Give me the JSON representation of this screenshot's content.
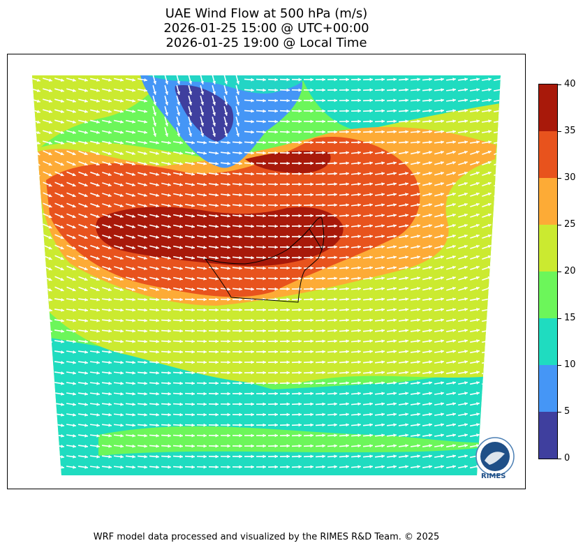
{
  "title": {
    "line1": "UAE Wind Flow at 500 hPa (m/s)",
    "line2": "2026-01-25 15:00 @ UTC+00:00",
    "line3": "2026-01-25 19:00 @ Local Time"
  },
  "colorbar": {
    "levels": [
      0,
      5,
      10,
      15,
      20,
      25,
      30,
      35,
      40
    ],
    "colors": [
      "#3f3f9e",
      "#4596f6",
      "#1fdcc0",
      "#6cf65a",
      "#cbea30",
      "#fdab36",
      "#e8531d",
      "#a8190a"
    ],
    "tick_labels": [
      "0",
      "5",
      "10",
      "15",
      "20",
      "25",
      "30",
      "35",
      "40"
    ]
  },
  "logo": {
    "text": "RIMES"
  },
  "credit": "WRF model data processed and visualized by the RIMES R&D Team. © 2025"
}
